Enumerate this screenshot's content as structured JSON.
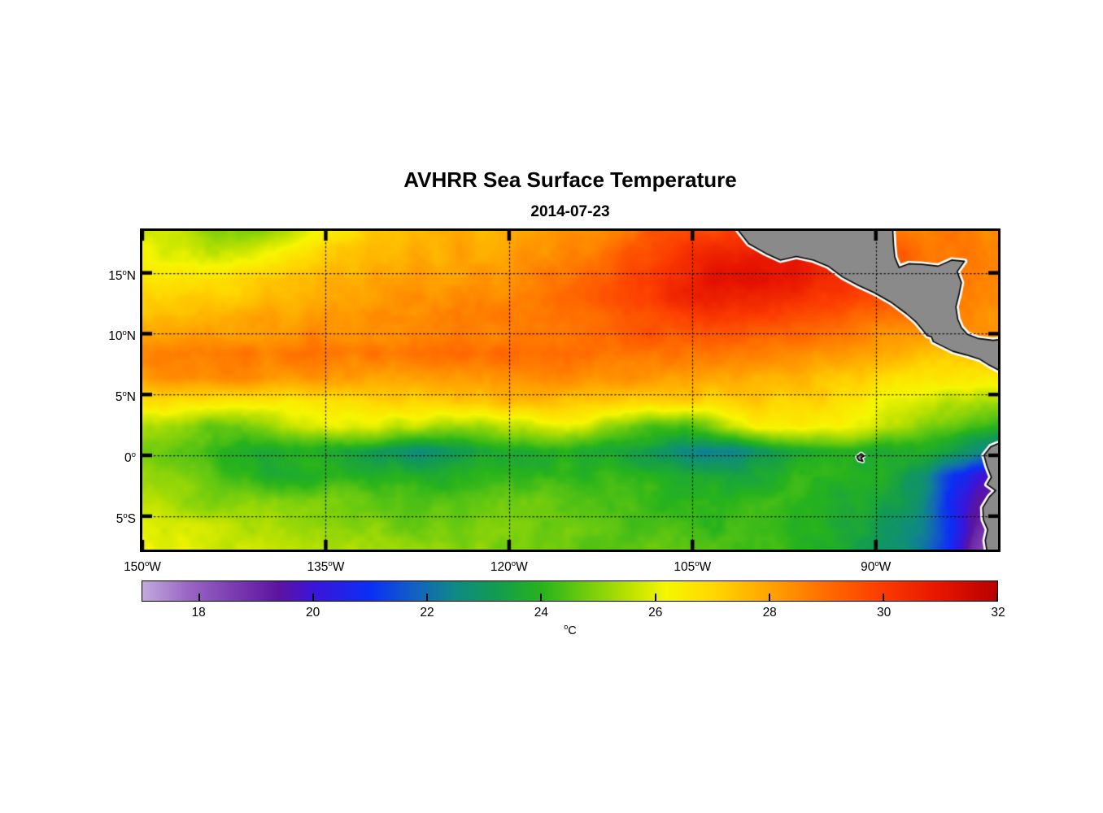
{
  "chart_data": {
    "type": "heatmap",
    "title": "AVHRR Sea Surface Temperature",
    "subtitle": "2014-07-23",
    "projection": "lon-lat",
    "extent": {
      "lon_min": -150,
      "lon_max": -80,
      "lat_min": -7.75,
      "lat_max": 18.45
    },
    "x_axis": {
      "ticks": [
        {
          "lon": -150,
          "label": "150°W"
        },
        {
          "lon": -135,
          "label": "135°W"
        },
        {
          "lon": -120,
          "label": "120°W"
        },
        {
          "lon": -105,
          "label": "105°W"
        },
        {
          "lon": -90,
          "label": "90°W"
        }
      ]
    },
    "y_axis": {
      "ticks": [
        {
          "lat": 15,
          "label": "15°N"
        },
        {
          "lat": 10,
          "label": "10°N"
        },
        {
          "lat": 5,
          "label": "5°N"
        },
        {
          "lat": 0,
          "label": "0°"
        },
        {
          "lat": -5,
          "label": "5°S"
        }
      ]
    },
    "grid_lines": {
      "style": "dotted",
      "color": "#000000",
      "lats": [
        15,
        10,
        5,
        0,
        -5
      ],
      "lons": [
        -135,
        -120,
        -105,
        -90
      ]
    },
    "colorbar": {
      "min": 17,
      "max": 32,
      "ticks": [
        18,
        20,
        22,
        24,
        26,
        28,
        30,
        32
      ],
      "label": "°C",
      "stops": [
        {
          "t": 17.0,
          "c": "#c2aadd"
        },
        {
          "t": 17.8,
          "c": "#9a66c4"
        },
        {
          "t": 18.6,
          "c": "#7b3cb0"
        },
        {
          "t": 19.4,
          "c": "#5c14a0"
        },
        {
          "t": 20.0,
          "c": "#3c14d8"
        },
        {
          "t": 21.0,
          "c": "#0b2ff5"
        },
        {
          "t": 21.8,
          "c": "#1262c0"
        },
        {
          "t": 22.5,
          "c": "#0f8a84"
        },
        {
          "t": 23.2,
          "c": "#129b52"
        },
        {
          "t": 24.0,
          "c": "#27b31c"
        },
        {
          "t": 24.8,
          "c": "#71cc0e"
        },
        {
          "t": 25.6,
          "c": "#c0e300"
        },
        {
          "t": 26.2,
          "c": "#f6f600"
        },
        {
          "t": 27.0,
          "c": "#ffd800"
        },
        {
          "t": 28.0,
          "c": "#ffa400"
        },
        {
          "t": 29.0,
          "c": "#ff6c00"
        },
        {
          "t": 30.0,
          "c": "#fb3a00"
        },
        {
          "t": 31.0,
          "c": "#e61400"
        },
        {
          "t": 32.0,
          "c": "#b80000"
        }
      ]
    },
    "sst_grid": {
      "units": "°C",
      "lon_start": -150,
      "lon_end": -80,
      "n_lon": 36,
      "lat_start": 18.45,
      "lat_end": -7.75,
      "n_lat": 14,
      "values": [
        [
          26.0,
          25.8,
          25.3,
          24.8,
          24.9,
          25.0,
          25.6,
          26.2,
          26.8,
          27.2,
          27.4,
          27.6,
          27.6,
          27.8,
          27.6,
          27.8,
          28.0,
          28.2,
          28.4,
          28.6,
          29.0,
          29.4,
          29.6,
          29.8,
          30.0,
          30.0,
          30.0,
          29.8,
          29.6,
          29.4,
          29.2,
          29.0,
          28.8,
          28.8,
          28.6,
          28.6
        ],
        [
          26.3,
          26.0,
          25.8,
          25.6,
          25.8,
          26.0,
          26.4,
          26.8,
          27.2,
          27.5,
          27.6,
          27.8,
          27.8,
          28.0,
          27.9,
          28.1,
          28.3,
          28.5,
          28.7,
          29.0,
          29.4,
          29.8,
          30.2,
          30.6,
          30.8,
          31.0,
          31.0,
          30.8,
          30.4,
          30.0,
          29.6,
          29.2,
          29.0,
          28.8,
          28.7,
          28.7
        ],
        [
          26.8,
          26.6,
          26.6,
          26.8,
          27.0,
          27.2,
          27.4,
          27.6,
          27.8,
          27.9,
          28.0,
          28.1,
          28.2,
          28.3,
          28.3,
          28.4,
          28.5,
          28.7,
          29.0,
          29.3,
          29.7,
          30.1,
          30.5,
          30.9,
          31.1,
          31.2,
          31.0,
          30.6,
          30.4,
          30.2,
          29.8,
          29.4,
          29.0,
          28.8,
          28.7,
          28.6
        ],
        [
          27.3,
          27.3,
          27.4,
          27.5,
          27.6,
          27.7,
          27.8,
          27.9,
          28.0,
          28.1,
          28.2,
          28.3,
          28.4,
          28.5,
          28.5,
          28.6,
          28.7,
          28.9,
          29.1,
          29.4,
          29.7,
          30.0,
          30.3,
          30.5,
          30.5,
          30.4,
          30.2,
          30.0,
          29.8,
          29.6,
          29.4,
          29.2,
          28.9,
          28.6,
          28.5,
          28.5
        ],
        [
          27.9,
          28.0,
          28.0,
          28.1,
          28.1,
          28.2,
          28.2,
          28.3,
          28.3,
          28.4,
          28.4,
          28.5,
          28.5,
          28.6,
          28.6,
          28.7,
          28.8,
          28.9,
          29.0,
          29.2,
          29.4,
          29.5,
          29.6,
          29.6,
          29.5,
          29.4,
          29.3,
          29.1,
          28.9,
          28.7,
          28.6,
          28.5,
          28.4,
          28.3,
          28.3,
          28.3
        ],
        [
          28.4,
          28.6,
          28.7,
          28.8,
          28.8,
          28.7,
          28.7,
          28.8,
          28.8,
          28.8,
          28.7,
          28.8,
          28.8,
          28.9,
          28.9,
          29.0,
          29.0,
          29.0,
          29.0,
          29.0,
          29.0,
          28.9,
          28.9,
          28.8,
          28.7,
          28.6,
          28.5,
          28.4,
          28.3,
          28.1,
          28.0,
          27.8,
          27.6,
          27.5,
          27.5,
          27.4
        ],
        [
          28.2,
          28.3,
          28.4,
          28.4,
          28.3,
          28.2,
          28.2,
          28.2,
          28.1,
          28.0,
          28.0,
          28.1,
          28.2,
          28.2,
          28.3,
          28.3,
          28.4,
          28.4,
          28.4,
          28.3,
          28.2,
          28.2,
          28.1,
          28.0,
          27.9,
          27.9,
          27.8,
          27.7,
          27.5,
          27.2,
          27.0,
          26.8,
          26.7,
          26.6,
          26.6,
          26.6
        ],
        [
          26.9,
          26.8,
          26.6,
          26.5,
          26.4,
          26.4,
          26.5,
          26.6,
          26.8,
          26.9,
          27.0,
          27.1,
          27.2,
          27.3,
          27.4,
          27.5,
          27.5,
          27.5,
          27.4,
          27.3,
          27.2,
          27.1,
          27.0,
          27.0,
          27.1,
          27.2,
          27.2,
          27.1,
          26.9,
          26.6,
          26.3,
          26.0,
          25.8,
          25.6,
          25.4,
          25.2
        ],
        [
          25.5,
          25.3,
          25.0,
          24.6,
          24.7,
          25.2,
          25.6,
          25.9,
          26.1,
          26.0,
          25.8,
          25.6,
          25.3,
          25.2,
          25.3,
          25.5,
          25.7,
          25.9,
          25.8,
          25.3,
          24.7,
          24.3,
          24.2,
          24.8,
          25.6,
          26.1,
          26.3,
          26.4,
          26.3,
          26.2,
          25.9,
          25.5,
          25.0,
          24.6,
          24.2,
          23.8
        ],
        [
          25.0,
          24.7,
          24.4,
          23.9,
          23.7,
          23.8,
          23.9,
          23.9,
          23.7,
          23.3,
          23.0,
          22.7,
          22.8,
          23.2,
          23.5,
          23.6,
          23.7,
          23.8,
          23.8,
          23.7,
          23.5,
          23.0,
          22.5,
          22.2,
          22.3,
          22.7,
          23.2,
          23.5,
          23.7,
          23.7,
          23.6,
          23.8,
          23.9,
          23.6,
          22.8,
          22.0
        ],
        [
          25.4,
          25.1,
          24.8,
          24.4,
          24.1,
          23.9,
          23.8,
          23.9,
          24.0,
          24.0,
          23.9,
          23.8,
          23.8,
          23.9,
          24.0,
          24.1,
          24.1,
          24.0,
          24.0,
          24.1,
          24.1,
          24.0,
          23.8,
          23.6,
          23.5,
          23.6,
          23.8,
          24.0,
          24.1,
          24.0,
          23.8,
          23.4,
          22.6,
          21.4,
          20.2,
          19.6
        ],
        [
          25.6,
          25.4,
          25.2,
          25.0,
          24.9,
          24.8,
          24.8,
          24.9,
          25.0,
          24.9,
          24.7,
          24.5,
          24.4,
          24.5,
          24.6,
          24.7,
          24.7,
          24.6,
          24.5,
          24.4,
          24.3,
          24.2,
          24.1,
          24.0,
          24.0,
          24.1,
          24.1,
          24.0,
          23.9,
          23.8,
          23.6,
          23.2,
          22.4,
          21.0,
          19.6,
          18.8
        ],
        [
          25.9,
          25.8,
          25.7,
          25.6,
          25.5,
          25.3,
          25.2,
          25.2,
          25.1,
          25.0,
          24.9,
          24.8,
          24.8,
          24.8,
          24.9,
          24.9,
          24.8,
          24.7,
          24.6,
          24.5,
          24.4,
          24.4,
          24.3,
          24.2,
          24.2,
          24.1,
          24.0,
          23.9,
          23.8,
          23.6,
          23.3,
          22.8,
          22.2,
          21.0,
          19.2,
          18.2
        ],
        [
          26.1,
          26.0,
          25.9,
          25.8,
          25.7,
          25.6,
          25.5,
          25.4,
          25.3,
          25.2,
          25.1,
          25.0,
          25.0,
          25.0,
          25.0,
          25.0,
          24.9,
          24.8,
          24.7,
          24.6,
          24.5,
          24.5,
          24.4,
          24.3,
          24.3,
          24.2,
          24.1,
          24.0,
          23.8,
          23.5,
          23.2,
          22.8,
          22.3,
          21.2,
          18.8,
          17.6
        ]
      ]
    },
    "land": {
      "fill": "#8a8a8a",
      "outline": "#000000",
      "fringe": "#ffffff",
      "polygons": [
        [
          [
            -101.8,
            19.2
          ],
          [
            -100.4,
            17.4
          ],
          [
            -99.0,
            16.6
          ],
          [
            -97.8,
            16.05
          ],
          [
            -96.5,
            16.35
          ],
          [
            -95.1,
            16.05
          ],
          [
            -93.9,
            15.55
          ],
          [
            -92.7,
            14.65
          ],
          [
            -91.4,
            13.95
          ],
          [
            -90.1,
            13.35
          ],
          [
            -88.7,
            12.55
          ],
          [
            -87.5,
            11.65
          ],
          [
            -86.7,
            10.95
          ],
          [
            -86.2,
            10.35
          ],
          [
            -85.8,
            9.85
          ],
          [
            -85.45,
            9.75
          ],
          [
            -85.3,
            9.35
          ],
          [
            -84.6,
            9.0
          ],
          [
            -83.7,
            8.55
          ],
          [
            -82.6,
            8.25
          ],
          [
            -81.5,
            7.9
          ],
          [
            -80.7,
            7.4
          ],
          [
            -79.2,
            6.6
          ],
          [
            -79.2,
            9.6
          ],
          [
            -80.4,
            9.45
          ],
          [
            -81.6,
            9.6
          ],
          [
            -82.5,
            9.95
          ],
          [
            -83.0,
            10.5
          ],
          [
            -83.3,
            11.2
          ],
          [
            -83.45,
            12.2
          ],
          [
            -83.2,
            13.2
          ],
          [
            -83.0,
            14.2
          ],
          [
            -83.35,
            15.1
          ],
          [
            -82.75,
            15.95
          ],
          [
            -83.8,
            16.05
          ],
          [
            -84.9,
            15.55
          ],
          [
            -86.2,
            15.7
          ],
          [
            -87.3,
            15.75
          ],
          [
            -88.1,
            15.45
          ],
          [
            -88.45,
            16.3
          ],
          [
            -88.55,
            17.3
          ],
          [
            -88.65,
            19.2
          ]
        ],
        [
          [
            -79.2,
            1.3
          ],
          [
            -80.6,
            0.7
          ],
          [
            -81.15,
            0.0
          ],
          [
            -80.9,
            -0.9
          ],
          [
            -80.55,
            -1.8
          ],
          [
            -80.9,
            -2.4
          ],
          [
            -80.2,
            -2.9
          ],
          [
            -80.7,
            -3.4
          ],
          [
            -81.25,
            -4.3
          ],
          [
            -81.2,
            -5.3
          ],
          [
            -80.85,
            -6.1
          ],
          [
            -81.05,
            -7.0
          ],
          [
            -80.8,
            -8.6
          ],
          [
            -79.2,
            -8.6
          ]
        ]
      ],
      "islands": [
        [
          [
            -91.55,
            -0.15
          ],
          [
            -91.2,
            0.15
          ],
          [
            -90.95,
            -0.05
          ],
          [
            -91.2,
            -0.2
          ],
          [
            -91.05,
            -0.5
          ],
          [
            -91.4,
            -0.4
          ]
        ]
      ]
    }
  }
}
